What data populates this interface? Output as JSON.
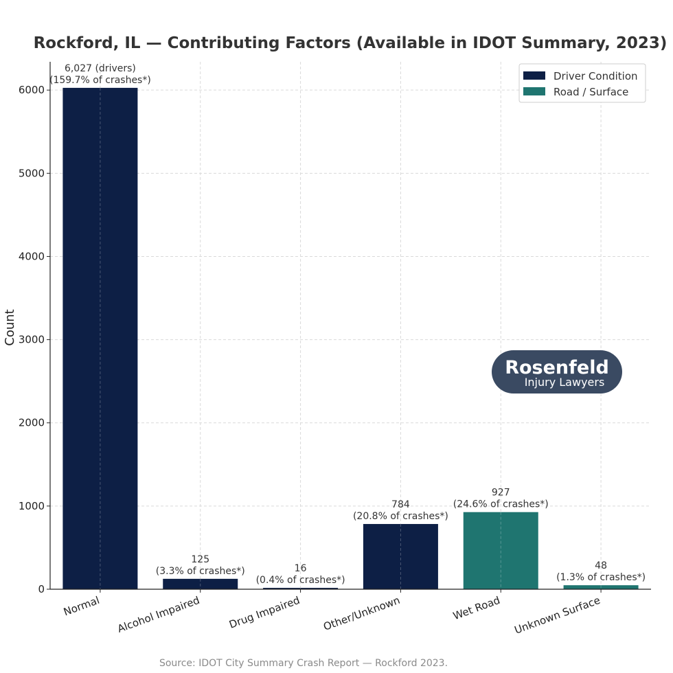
{
  "chart_data": {
    "type": "bar",
    "title": "Rockford, IL — Contributing Factors (Available in IDOT Summary, 2023)",
    "xlabel": "",
    "ylabel": "Count",
    "ylim": [
      0,
      6340
    ],
    "yticks": [
      0,
      1000,
      2000,
      3000,
      4000,
      5000,
      6000
    ],
    "grid": true,
    "legend_position": "top-right",
    "legend": [
      {
        "label": "Driver Condition",
        "color": "#0d1f45"
      },
      {
        "label": "Road / Surface",
        "color": "#1f7570"
      }
    ],
    "categories": [
      "Normal",
      "Alcohol Impaired",
      "Drug Impaired",
      "Other/Unknown",
      "Wet Road",
      "Unknown Surface"
    ],
    "values": [
      6027,
      125,
      16,
      784,
      927,
      48
    ],
    "groups": [
      "Driver Condition",
      "Driver Condition",
      "Driver Condition",
      "Driver Condition",
      "Road / Surface",
      "Road / Surface"
    ],
    "labels": [
      [
        "6,027 (drivers)",
        "(159.7% of crashes*)"
      ],
      [
        "125",
        "(3.3% of crashes*)"
      ],
      [
        "16",
        "(0.4% of crashes*)"
      ],
      [
        "784",
        "(20.8% of crashes*)"
      ],
      [
        "927",
        "(24.6% of crashes*)"
      ],
      [
        "48",
        "(1.3% of crashes*)"
      ]
    ],
    "source": "Source: IDOT City Summary Crash Report — Rockford 2023."
  },
  "logo": {
    "name": "Rosenfeld",
    "tagline": "Injury Lawyers",
    "bg_color": "#3a4a62"
  }
}
